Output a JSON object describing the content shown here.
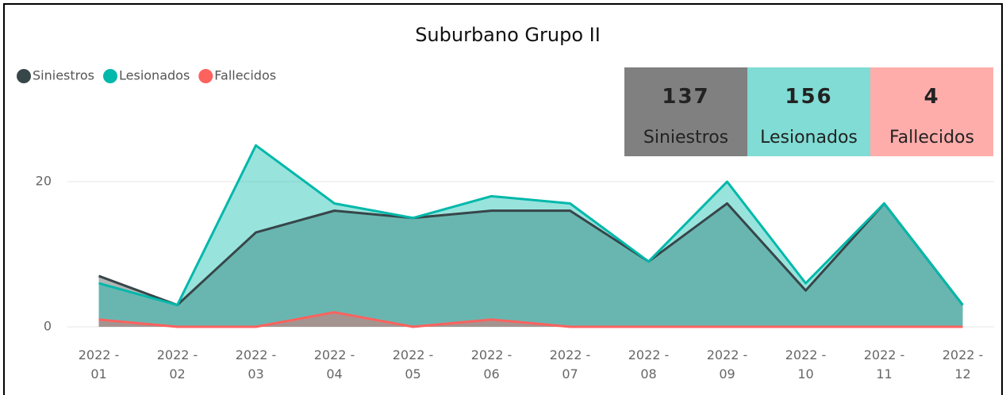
{
  "chart_data": {
    "type": "area",
    "title": "Suburbano Grupo II",
    "categories": [
      "2022 - 01",
      "2022 - 02",
      "2022 - 03",
      "2022 - 04",
      "2022 - 05",
      "2022 - 06",
      "2022 - 07",
      "2022 - 08",
      "2022 - 09",
      "2022 - 10",
      "2022 - 11",
      "2022 - 12"
    ],
    "series": [
      {
        "name": "Siniestros",
        "color": "#374649",
        "values": [
          7,
          3,
          13,
          16,
          15,
          16,
          16,
          9,
          17,
          5,
          17,
          3
        ]
      },
      {
        "name": "Lesionados",
        "color": "#01B8AA",
        "values": [
          6,
          3,
          25,
          17,
          15,
          18,
          17,
          9,
          20,
          6,
          17,
          3
        ]
      },
      {
        "name": "Fallecidos",
        "color": "#FD625E",
        "values": [
          1,
          0,
          0,
          2,
          0,
          1,
          0,
          0,
          0,
          0,
          0,
          0
        ]
      }
    ],
    "ylim": [
      0,
      27
    ],
    "yticks": [
      0,
      20
    ],
    "grid": true,
    "legend": "top-left"
  },
  "cards": [
    {
      "value": 137,
      "label": "Siniestros",
      "color": "#808080"
    },
    {
      "value": 156,
      "label": "Lesionados",
      "color": "#80DCD4"
    },
    {
      "value": 4,
      "label": "Fallecidos",
      "color": "#FFADAB"
    }
  ]
}
